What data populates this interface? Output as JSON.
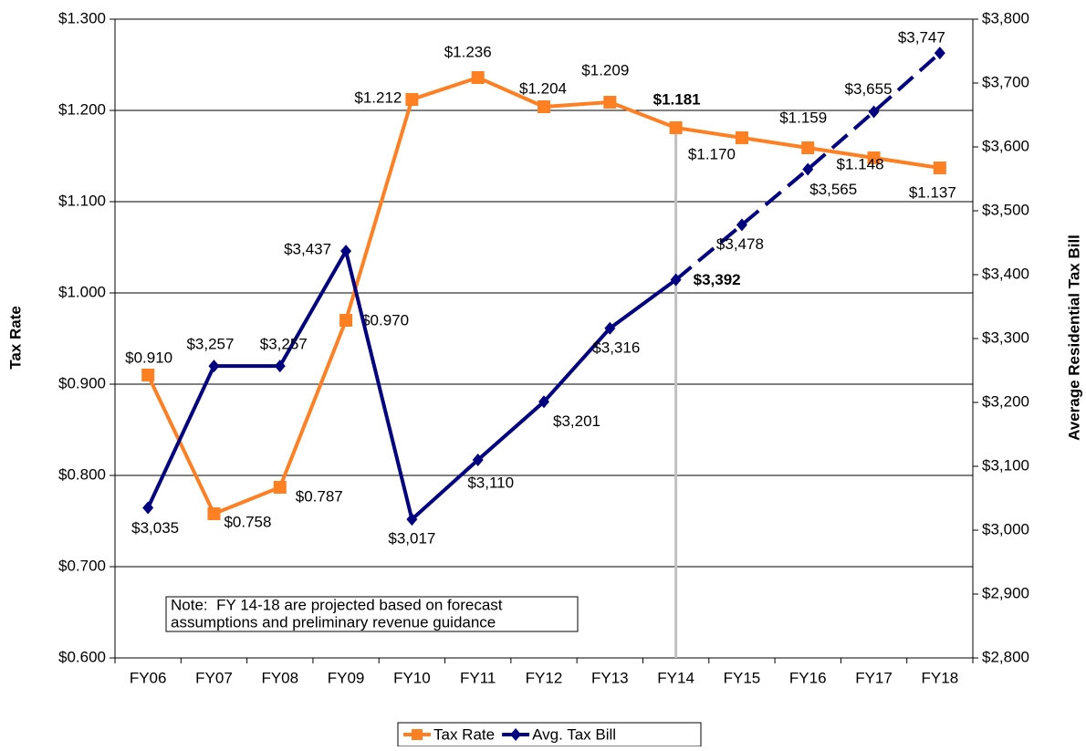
{
  "chart_data": {
    "type": "line",
    "categories": [
      "FY06",
      "FY07",
      "FY08",
      "FY09",
      "FY10",
      "FY11",
      "FY12",
      "FY13",
      "FY14",
      "FY15",
      "FY16",
      "FY17",
      "FY18"
    ],
    "series": [
      {
        "name": "Tax Rate",
        "color": "#ff7f23",
        "axis": "y",
        "values": [
          0.91,
          0.758,
          0.787,
          0.97,
          1.212,
          1.236,
          1.204,
          1.209,
          1.181,
          1.17,
          1.159,
          1.148,
          1.137
        ],
        "value_labels": [
          "$0.910",
          "$0.758",
          "$0.787",
          "$0.970",
          "$1.212",
          "$1.236",
          "$1.204",
          "$1.209",
          "$1.181",
          "$1.170",
          "$1.159",
          "$1.148",
          "$1.137"
        ]
      },
      {
        "name": "Avg. Tax Bill",
        "color": "#000080",
        "axis": "y2",
        "values": [
          3035,
          3257,
          3257,
          3437,
          3017,
          3110,
          3201,
          3316,
          3392,
          3478,
          3565,
          3655,
          3747
        ],
        "value_labels": [
          "$3,035",
          "$3,257",
          "$3,257",
          "$3,437",
          "$3,017",
          "$3,110",
          "$3,201",
          "$3,316",
          "$3,392",
          "$3,478",
          "$3,565",
          "$3,655",
          "$3,747"
        ]
      }
    ],
    "ylabel": "Tax Rate",
    "y2label": "Average Residential Tax Bill",
    "ylim": [
      0.6,
      1.3
    ],
    "yticks": [
      {
        "value": 0.6,
        "label": "$0.600"
      },
      {
        "value": 0.7,
        "label": "$0.700"
      },
      {
        "value": 0.8,
        "label": "$0.800"
      },
      {
        "value": 0.9,
        "label": "$0.900"
      },
      {
        "value": 1.0,
        "label": "$1.000"
      },
      {
        "value": 1.1,
        "label": "$1.100"
      },
      {
        "value": 1.2,
        "label": "$1.200"
      },
      {
        "value": 1.3,
        "label": "$1.300"
      }
    ],
    "y2lim": [
      2800,
      3800
    ],
    "y2ticks": [
      {
        "value": 2800,
        "label": "$2,800"
      },
      {
        "value": 2900,
        "label": "$2,900"
      },
      {
        "value": 3000,
        "label": "$3,000"
      },
      {
        "value": 3100,
        "label": "$3,100"
      },
      {
        "value": 3200,
        "label": "$3,200"
      },
      {
        "value": 3300,
        "label": "$3,300"
      },
      {
        "value": 3400,
        "label": "$3,400"
      },
      {
        "value": 3500,
        "label": "$3,500"
      },
      {
        "value": 3600,
        "label": "$3,600"
      },
      {
        "value": 3700,
        "label": "$3,700"
      },
      {
        "value": 3800,
        "label": "$3,800"
      }
    ],
    "grid": true,
    "projected_from": "FY14",
    "note": [
      "Note:  FY 14-18 are projected based on forecast",
      "assumptions and preliminary revenue guidance"
    ],
    "legend": "bottom"
  }
}
